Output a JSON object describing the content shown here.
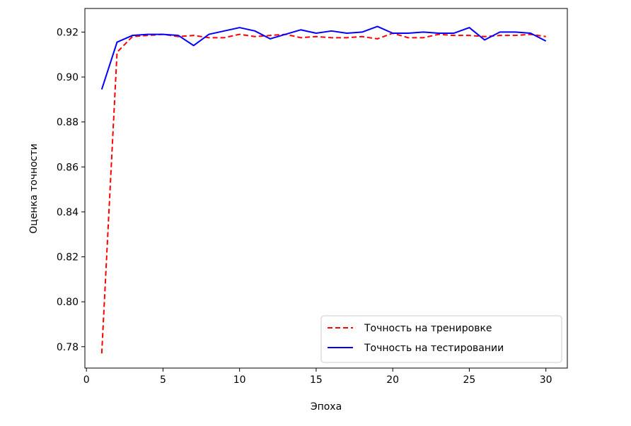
{
  "chart_data": {
    "type": "line",
    "title": "",
    "xlabel": "Эпоха",
    "ylabel": "Оценка точности",
    "xlim": [
      -0.1,
      31.4
    ],
    "ylim": [
      0.7705,
      0.9305
    ],
    "xticks": [
      0,
      5,
      10,
      15,
      20,
      25,
      30
    ],
    "xtick_labels": [
      "0",
      "5",
      "10",
      "15",
      "20",
      "25",
      "30"
    ],
    "yticks": [
      0.78,
      0.8,
      0.82,
      0.84,
      0.86,
      0.88,
      0.9,
      0.92
    ],
    "ytick_labels": [
      "0.78",
      "0.80",
      "0.82",
      "0.84",
      "0.86",
      "0.88",
      "0.90",
      "0.92"
    ],
    "grid": false,
    "legend_position": "lower-right",
    "x": [
      1,
      2,
      3,
      4,
      5,
      6,
      7,
      8,
      9,
      10,
      11,
      12,
      13,
      14,
      15,
      16,
      17,
      18,
      19,
      20,
      21,
      22,
      23,
      24,
      25,
      26,
      27,
      28,
      29,
      30
    ],
    "series": [
      {
        "name": "Точность на тренировке",
        "color": "#ff0000",
        "line_style": "dashed",
        "values": [
          0.777,
          0.911,
          0.918,
          0.9185,
          0.919,
          0.918,
          0.9185,
          0.9175,
          0.9175,
          0.919,
          0.918,
          0.9185,
          0.919,
          0.9175,
          0.918,
          0.9175,
          0.9175,
          0.918,
          0.917,
          0.9195,
          0.9175,
          0.9175,
          0.919,
          0.9185,
          0.9185,
          0.918,
          0.9185,
          0.9185,
          0.919,
          0.918
        ]
      },
      {
        "name": "Точность на тестировании",
        "color": "#0000ff",
        "line_style": "solid",
        "values": [
          0.8945,
          0.9155,
          0.9185,
          0.919,
          0.919,
          0.9185,
          0.914,
          0.919,
          0.9205,
          0.922,
          0.9205,
          0.917,
          0.919,
          0.921,
          0.9195,
          0.9205,
          0.9195,
          0.92,
          0.9225,
          0.9195,
          0.9195,
          0.92,
          0.9195,
          0.9195,
          0.922,
          0.9165,
          0.92,
          0.92,
          0.9195,
          0.916
        ]
      }
    ]
  }
}
